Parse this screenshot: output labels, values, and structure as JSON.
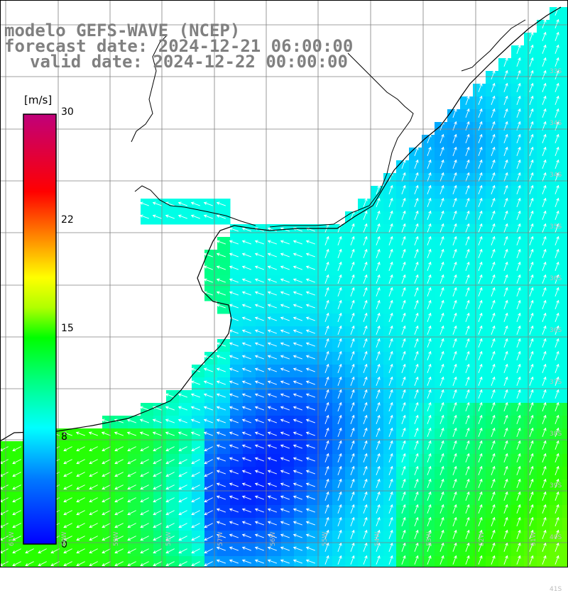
{
  "title": {
    "line1": "modelo GEFS-WAVE (NCEP)",
    "line2": "forecast date: 2024-12-21 06:00:00",
    "line3": "valid date: 2024-12-22 00:00:00"
  },
  "colorbar": {
    "unit": "[m/s]",
    "ticks": [
      "30",
      "22",
      "15",
      "8",
      "0"
    ],
    "min": 0,
    "max": 30,
    "colors": [
      "#0000ff",
      "#0064ff",
      "#00b4ff",
      "#00ffff",
      "#00ff64",
      "#00ff00",
      "#a0ff00",
      "#ffff00",
      "#ffc800",
      "#ff6400",
      "#ff0000",
      "#d20064",
      "#be0078"
    ]
  },
  "grid": {
    "lat_labels": [
      "33S",
      "34S",
      "34S",
      "35S",
      "36S",
      "36S",
      "37S",
      "38S",
      "39S",
      "40S",
      "41S"
    ],
    "lon_labels": [
      "61W",
      "60W",
      "59W",
      "58W",
      "57W",
      "56W",
      "55W",
      "54W",
      "53W",
      "52W",
      "51W"
    ]
  },
  "colors": {
    "land": "#ffffff",
    "grid": "#808080",
    "coast": "#000000",
    "arrows": "#ffffff",
    "title": "#808080"
  }
}
